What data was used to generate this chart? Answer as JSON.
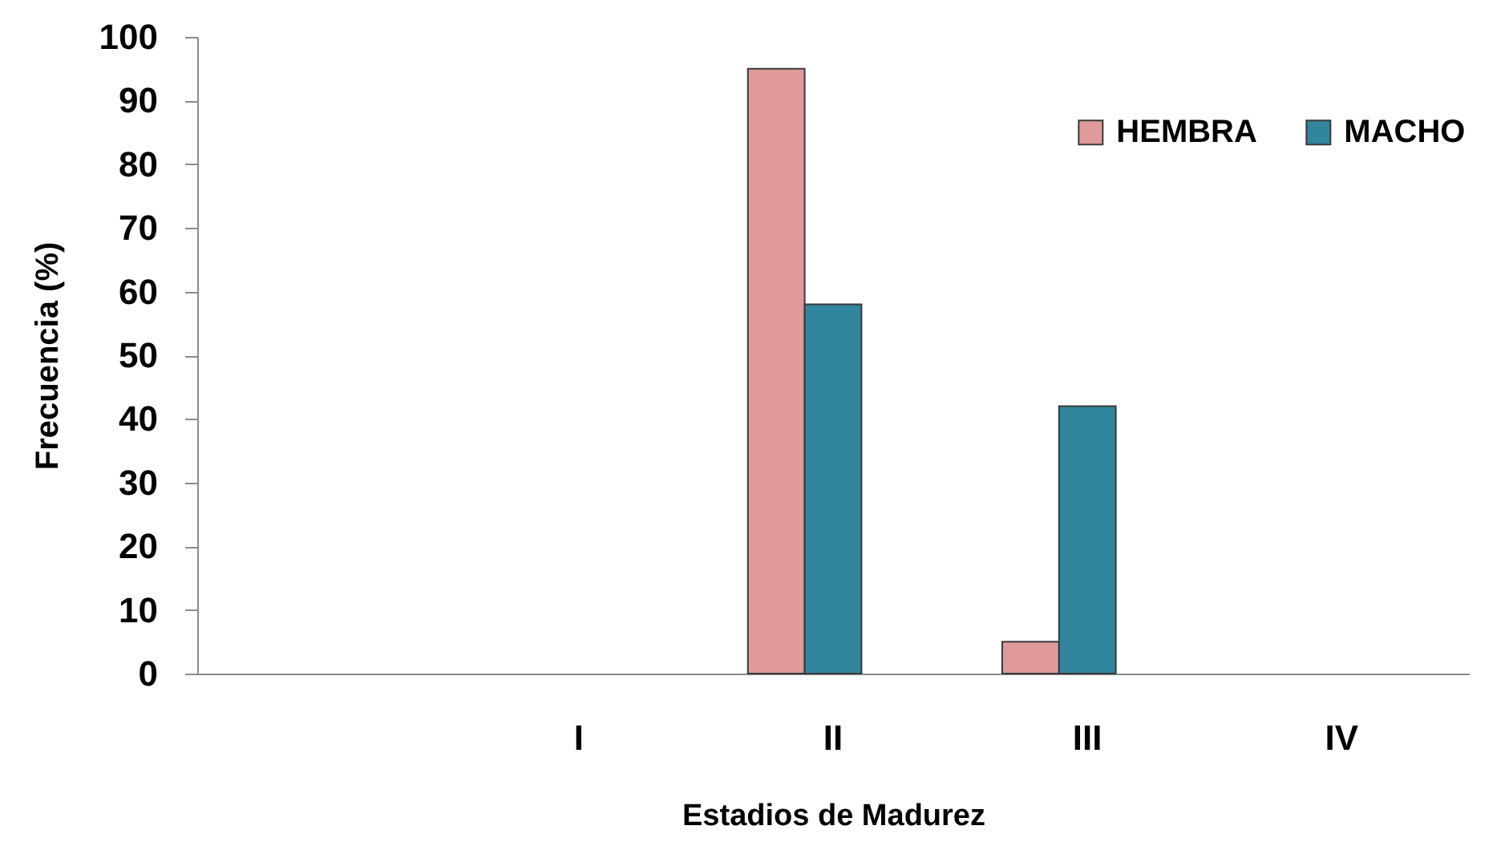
{
  "chart_data": {
    "type": "bar",
    "xlabel": "Estadios de Madurez",
    "ylabel": "Frecuencia (%)",
    "categories": [
      null,
      "I",
      "II",
      "III",
      "IV"
    ],
    "series": [
      {
        "name": "HEMBRA",
        "color": "#e09a9a",
        "values": [
          null,
          null,
          95,
          5,
          null
        ]
      },
      {
        "name": "MACHO",
        "color": "#31859c",
        "values": [
          null,
          null,
          58,
          42,
          null
        ]
      }
    ],
    "ylim": [
      0,
      100
    ],
    "yticks": [
      0,
      10,
      20,
      30,
      40,
      50,
      60,
      70,
      80,
      90,
      100
    ],
    "grid": false,
    "legend": "top right"
  }
}
